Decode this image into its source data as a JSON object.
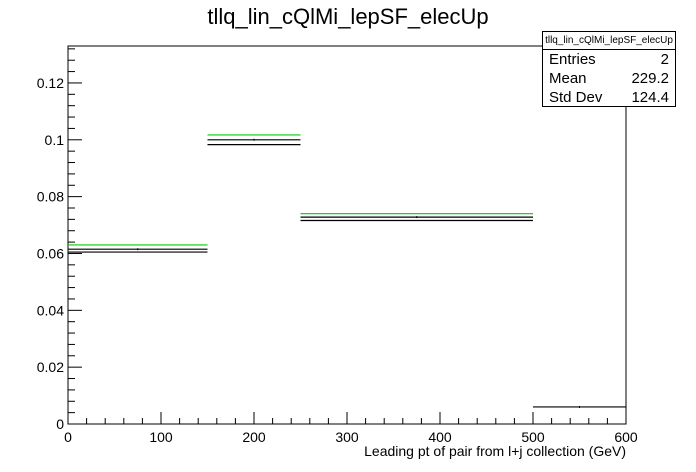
{
  "chart_data": {
    "type": "histogram",
    "title": "tllq_lin_cQlMi_lepSF_elecUp",
    "xlabel": "Leading pt of pair from l+j collection (GeV)",
    "ylabel": "",
    "xlim": [
      0,
      600
    ],
    "ylim": [
      0,
      0.133
    ],
    "x_ticks": [
      0,
      100,
      200,
      300,
      400,
      500,
      600
    ],
    "y_ticks": [
      0,
      0.02,
      0.04,
      0.06,
      0.08,
      0.1,
      0.12
    ],
    "x_tick_labels": [
      "0",
      "100",
      "200",
      "300",
      "400",
      "500",
      "600"
    ],
    "y_tick_labels": [
      "0",
      "0.02",
      "0.04",
      "0.06",
      "0.08",
      "0.1",
      "0.12"
    ],
    "bins": [
      {
        "low": 0,
        "high": 150,
        "content": 0.0615,
        "up": 0.063,
        "down": 0.0605
      },
      {
        "low": 150,
        "high": 250,
        "content": 0.1,
        "up": 0.1017,
        "down": 0.0983
      },
      {
        "low": 250,
        "high": 500,
        "content": 0.0728,
        "up": 0.074,
        "down": 0.0716
      },
      {
        "low": 500,
        "high": 600,
        "content": 0.006
      }
    ],
    "colors": {
      "nominal": "#000000",
      "variation": "#00cc00"
    },
    "grid": false,
    "stats_box": {
      "name": "tllq_lin_cQlMi_lepSF_elecUp",
      "rows": [
        {
          "label": "Entries",
          "value": "2"
        },
        {
          "label": "Mean",
          "value": "229.2"
        },
        {
          "label": "Std Dev",
          "value": "124.4"
        }
      ]
    }
  }
}
